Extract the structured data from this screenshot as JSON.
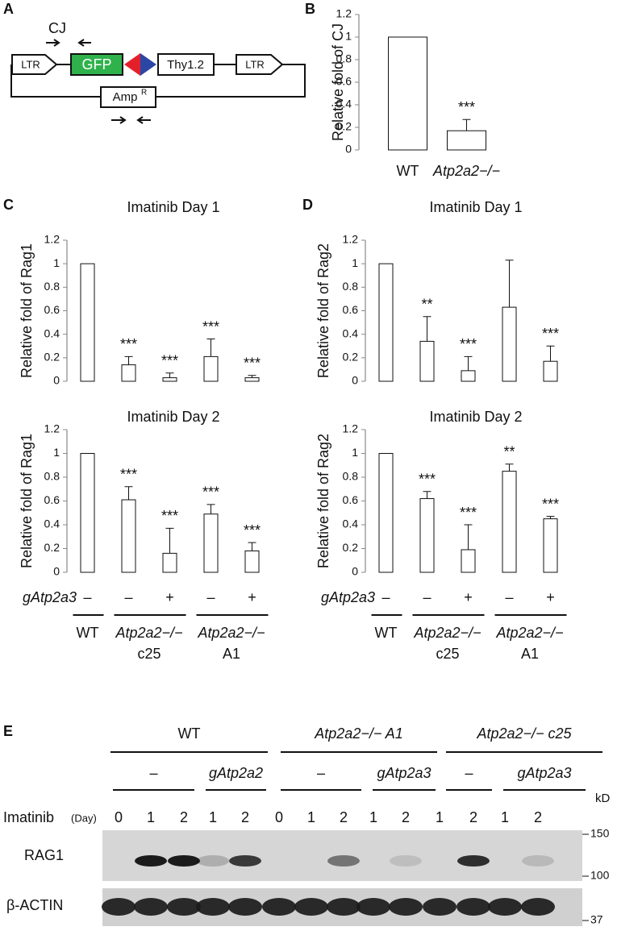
{
  "panel_labels": [
    "A",
    "B",
    "C",
    "D",
    "E"
  ],
  "diagram": {
    "primer_label": "CJ",
    "ltr_left": "LTR",
    "gfp": "GFP",
    "thy": "Thy1.2",
    "ltr_right": "LTR",
    "amp": "Amp",
    "amp_sup": "R"
  },
  "chart_data": [
    {
      "type": "bar",
      "y_label": "Relative fold of CJ",
      "categories": [
        "WT",
        "Atp2a2−/−"
      ],
      "values": [
        1,
        0.17
      ],
      "errors": [
        null,
        0.1
      ],
      "significance": [
        null,
        "***"
      ],
      "color": "#ffffff",
      "ylim": [
        0,
        1.2
      ],
      "yticks": [
        0,
        0.2,
        0.4,
        0.6,
        0.8,
        1,
        1.2
      ]
    },
    {
      "type": "bar",
      "title": "Imatinib Day 1",
      "y_label": "Relative fold of Rag1",
      "categories": [
        null,
        null,
        null,
        null,
        null
      ],
      "values": [
        1,
        0.14,
        0.03,
        0.21,
        0.03
      ],
      "errors": [
        null,
        0.07,
        0.04,
        0.15,
        0.02
      ],
      "significance": [
        null,
        "***",
        "***",
        "***",
        "***"
      ],
      "color": "#ffffff",
      "ylim": [
        0,
        1.2
      ],
      "yticks": [
        0,
        0.2,
        0.4,
        0.6,
        0.8,
        1,
        1.2
      ]
    },
    {
      "type": "bar",
      "title": "Imatinib Day 2",
      "y_label": "Relative fold of Rag1",
      "categories": [
        null,
        null,
        null,
        null,
        null
      ],
      "values": [
        1,
        0.61,
        0.16,
        0.49,
        0.18
      ],
      "errors": [
        null,
        0.11,
        0.21,
        0.08,
        0.07
      ],
      "significance": [
        null,
        "***",
        "***",
        "***",
        "***"
      ],
      "color": "#ffffff",
      "ylim": [
        0,
        1.2
      ],
      "yticks": [
        0,
        0.2,
        0.4,
        0.6,
        0.8,
        1,
        1.2
      ]
    },
    {
      "type": "bar",
      "title": "Imatinib Day 1",
      "y_label": "Relative fold of Rag2",
      "categories": [
        null,
        null,
        null,
        null,
        null
      ],
      "values": [
        1,
        0.34,
        0.09,
        0.63,
        0.17
      ],
      "errors": [
        null,
        0.21,
        0.12,
        0.4,
        0.13
      ],
      "significance": [
        null,
        "**",
        "***",
        null,
        "***"
      ],
      "color": "#ffffff",
      "ylim": [
        0,
        1.2
      ],
      "yticks": [
        0,
        0.2,
        0.4,
        0.6,
        0.8,
        1,
        1.2
      ]
    },
    {
      "type": "bar",
      "title": "Imatinib Day 2",
      "y_label": "Relative fold of Rag2",
      "categories": [
        null,
        null,
        null,
        null,
        null
      ],
      "values": [
        1,
        0.62,
        0.19,
        0.85,
        0.45
      ],
      "errors": [
        null,
        0.06,
        0.21,
        0.06,
        0.02
      ],
      "significance": [
        null,
        "***",
        "***",
        "**",
        "***"
      ],
      "color": "#ffffff",
      "ylim": [
        0,
        1.2
      ],
      "yticks": [
        0,
        0.2,
        0.4,
        0.6,
        0.8,
        1,
        1.2
      ]
    }
  ],
  "lane_keys": [
    {
      "row_label": "gAtp2a3",
      "signs": [
        "–",
        "–",
        "+",
        "–",
        "+"
      ],
      "groups": [
        {
          "name": "WT"
        },
        {
          "name": "Atp2a2−/−",
          "sub": "c25"
        },
        {
          "name": "Atp2a2−/−",
          "sub": "A1"
        }
      ]
    },
    {
      "row_label": "gAtp2a3",
      "signs": [
        "–",
        "–",
        "+",
        "–",
        "+"
      ],
      "groups": [
        {
          "name": "WT"
        },
        {
          "name": "Atp2a2−/−",
          "sub": "c25"
        },
        {
          "name": "Atp2a2−/−",
          "sub": "A1"
        }
      ]
    }
  ],
  "blot": {
    "groups": [
      "WT",
      "Atp2a2−/− A1",
      "Atp2a2−/− c25"
    ],
    "subgroups": [
      "–",
      "gAtp2a2",
      "–",
      "gAtp2a3",
      "–",
      "gAtp2a3"
    ],
    "row_label": "Imatinib",
    "row_unit": "(Day)",
    "days": [
      0,
      1,
      2,
      1,
      2,
      0,
      1,
      2,
      1,
      2,
      1,
      2,
      1,
      2
    ],
    "unit": "kD",
    "markers": [
      "150",
      "100",
      "37"
    ],
    "rows": [
      "RAG1",
      "β-ACTIN"
    ]
  }
}
